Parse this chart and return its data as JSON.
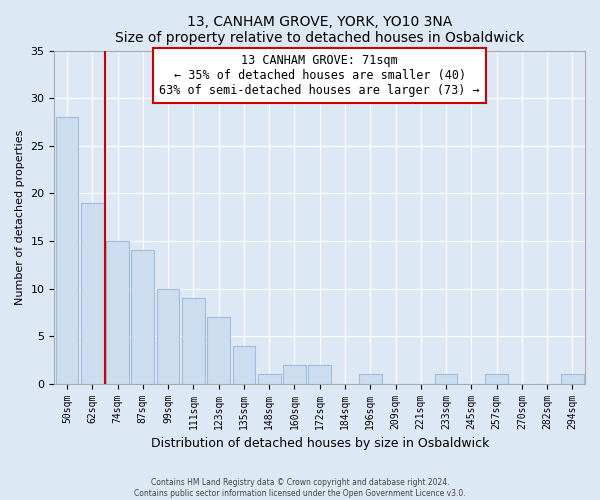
{
  "title": "13, CANHAM GROVE, YORK, YO10 3NA",
  "subtitle": "Size of property relative to detached houses in Osbaldwick",
  "xlabel": "Distribution of detached houses by size in Osbaldwick",
  "ylabel": "Number of detached properties",
  "bar_labels": [
    "50sqm",
    "62sqm",
    "74sqm",
    "87sqm",
    "99sqm",
    "111sqm",
    "123sqm",
    "135sqm",
    "148sqm",
    "160sqm",
    "172sqm",
    "184sqm",
    "196sqm",
    "209sqm",
    "221sqm",
    "233sqm",
    "245sqm",
    "257sqm",
    "270sqm",
    "282sqm",
    "294sqm"
  ],
  "bar_values": [
    28,
    19,
    15,
    14,
    10,
    9,
    7,
    4,
    1,
    2,
    2,
    0,
    1,
    0,
    0,
    1,
    0,
    1,
    0,
    0,
    1
  ],
  "bar_color": "#ccddf0",
  "bar_edge_color": "#a0bcd8",
  "ylim": [
    0,
    35
  ],
  "yticks": [
    0,
    5,
    10,
    15,
    20,
    25,
    30,
    35
  ],
  "marker_line_color": "#cc0000",
  "annotation_line1": "13 CANHAM GROVE: 71sqm",
  "annotation_line2": "← 35% of detached houses are smaller (40)",
  "annotation_line3": "63% of semi-detached houses are larger (73) →",
  "footer1": "Contains HM Land Registry data © Crown copyright and database right 2024.",
  "footer2": "Contains public sector information licensed under the Open Government Licence v3.0.",
  "bg_color": "#dde8f5",
  "plot_bg_color": "#dde8f5",
  "grid_color": "#ffffff"
}
